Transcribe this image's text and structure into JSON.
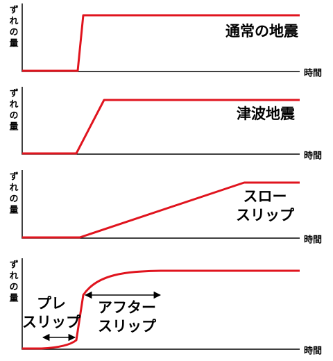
{
  "panels": [
    {
      "y_label": "ずれの量",
      "x_label": "時間",
      "labels": [
        {
          "lines": [
            "通常の地震"
          ]
        }
      ]
    },
    {
      "y_label": "ずれの量",
      "x_label": "時間",
      "labels": [
        {
          "lines": [
            "津波地震"
          ]
        }
      ]
    },
    {
      "y_label": "ずれの量",
      "x_label": "時間",
      "labels": [
        {
          "lines": [
            "スロー",
            "スリップ"
          ]
        }
      ]
    },
    {
      "y_label": "ずれの量",
      "x_label": "時間",
      "labels": [
        {
          "lines": [
            "プレ",
            "スリップ"
          ]
        },
        {
          "lines": [
            "アフター",
            "スリップ"
          ]
        }
      ]
    }
  ]
}
